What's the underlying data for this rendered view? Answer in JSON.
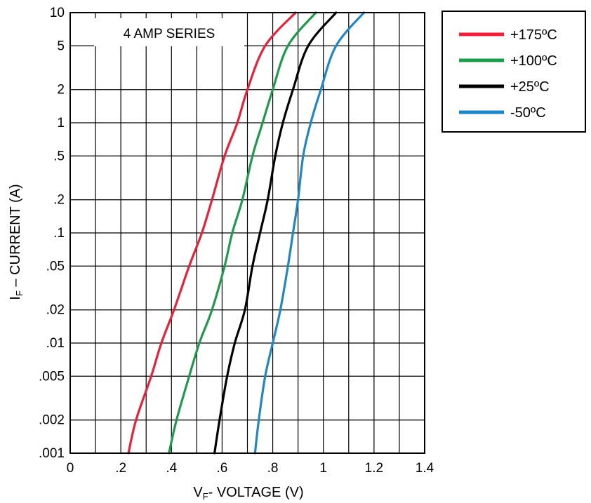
{
  "chart_data": {
    "type": "line",
    "annotation": "4 AMP SERIES",
    "xlabel": {
      "main": "V",
      "sub": "F",
      "rest": "- VOLTAGE (V)"
    },
    "ylabel": {
      "main": "I",
      "sub": "F",
      "rest": " – CURRENT  (A)"
    },
    "x_scale": "linear",
    "y_scale": "log",
    "xlim": [
      0,
      1.4
    ],
    "ylim": [
      0.001,
      10
    ],
    "x_ticks": [
      0,
      0.2,
      0.4,
      0.6,
      0.8,
      1.0,
      1.2,
      1.4
    ],
    "x_tick_labels": [
      "0",
      ".2",
      ".4",
      ".6",
      ".8",
      "1",
      "1.2",
      "1.4"
    ],
    "y_ticks": [
      0.001,
      0.002,
      0.005,
      0.01,
      0.02,
      0.05,
      0.1,
      0.2,
      0.5,
      1,
      2,
      5,
      10
    ],
    "y_tick_labels": [
      ".001",
      ".002",
      ".005",
      ".01",
      ".02",
      ".05",
      ".1",
      ".2",
      ".5",
      "1",
      "2",
      "5",
      "10"
    ],
    "grid": true,
    "legend_position": "top-right, outside plot",
    "series": [
      {
        "name": "+175ºC",
        "color": "#e8203a",
        "points": [
          [
            0.23,
            0.001
          ],
          [
            0.26,
            0.002
          ],
          [
            0.32,
            0.005
          ],
          [
            0.36,
            0.01
          ],
          [
            0.41,
            0.02
          ],
          [
            0.47,
            0.05
          ],
          [
            0.52,
            0.1
          ],
          [
            0.56,
            0.2
          ],
          [
            0.61,
            0.5
          ],
          [
            0.66,
            1
          ],
          [
            0.7,
            2
          ],
          [
            0.77,
            5
          ],
          [
            0.89,
            10
          ]
        ]
      },
      {
        "name": "+100ºC",
        "color": "#1d9a4b",
        "points": [
          [
            0.39,
            0.001
          ],
          [
            0.42,
            0.002
          ],
          [
            0.47,
            0.005
          ],
          [
            0.51,
            0.01
          ],
          [
            0.56,
            0.02
          ],
          [
            0.61,
            0.05
          ],
          [
            0.64,
            0.1
          ],
          [
            0.68,
            0.2
          ],
          [
            0.72,
            0.5
          ],
          [
            0.76,
            1
          ],
          [
            0.8,
            2
          ],
          [
            0.86,
            5
          ],
          [
            0.97,
            10
          ]
        ]
      },
      {
        "name": "+25ºC",
        "color": "#000000",
        "points": [
          [
            0.57,
            0.001
          ],
          [
            0.59,
            0.002
          ],
          [
            0.62,
            0.005
          ],
          [
            0.65,
            0.01
          ],
          [
            0.69,
            0.02
          ],
          [
            0.72,
            0.05
          ],
          [
            0.75,
            0.1
          ],
          [
            0.78,
            0.2
          ],
          [
            0.81,
            0.5
          ],
          [
            0.84,
            1
          ],
          [
            0.88,
            2
          ],
          [
            0.94,
            5
          ],
          [
            1.05,
            10
          ]
        ]
      },
      {
        "name": "-50ºC",
        "color": "#1f86c8",
        "points": [
          [
            0.73,
            0.001
          ],
          [
            0.745,
            0.002
          ],
          [
            0.77,
            0.005
          ],
          [
            0.8,
            0.01
          ],
          [
            0.83,
            0.02
          ],
          [
            0.86,
            0.05
          ],
          [
            0.88,
            0.1
          ],
          [
            0.9,
            0.2
          ],
          [
            0.92,
            0.5
          ],
          [
            0.95,
            1
          ],
          [
            0.99,
            2
          ],
          [
            1.05,
            5
          ],
          [
            1.16,
            10
          ]
        ]
      }
    ]
  }
}
